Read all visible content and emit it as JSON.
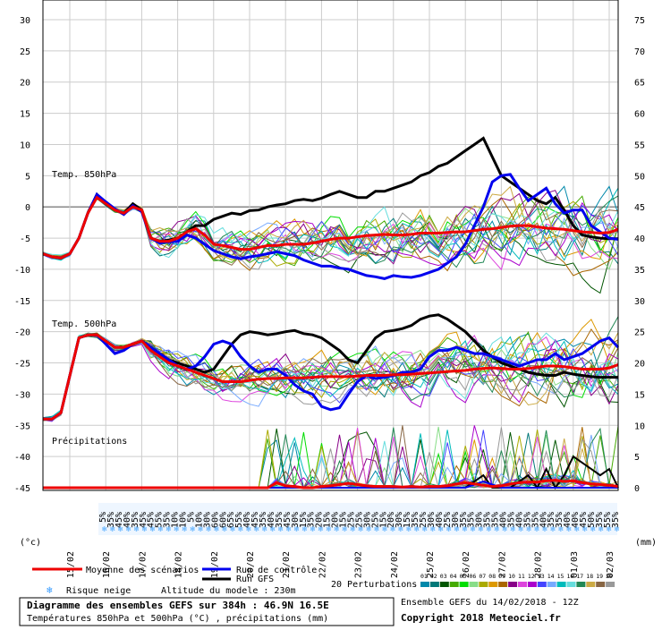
{
  "chart_data": {
    "type": "line",
    "title": "Diagramme des ensembles GEFS sur 384h : 46.9N 16.5E",
    "subtitle": "Températures 850hPa et 500hPa (°C) , précipitations (mm)",
    "left_axis": {
      "label": "(°c)",
      "ylim": [
        -45,
        30
      ],
      "ticks": [
        "30",
        "25",
        "20",
        "15",
        "10",
        "5",
        "0",
        "-5",
        "-10",
        "-15",
        "-20",
        "-25",
        "-30",
        "-35",
        "-40",
        "-45"
      ]
    },
    "right_axis": {
      "label": "(mm)",
      "ylim": [
        0,
        75
      ],
      "ticks": [
        "75",
        "70",
        "65",
        "60",
        "55",
        "50",
        "45",
        "40",
        "35",
        "30",
        "25",
        "20",
        "15",
        "10",
        "5",
        "0"
      ]
    },
    "x_dates": [
      "15/02",
      "16/02",
      "17/02",
      "18/02",
      "19/02",
      "20/02",
      "21/02",
      "22/02",
      "23/02",
      "24/02",
      "25/02",
      "26/02",
      "27/02",
      "28/02",
      "01/03",
      "02/03"
    ],
    "panels": {
      "t850": "Temp. 850hPa",
      "t500": "Temp. 500hPa",
      "precip": "Précipitations"
    },
    "x_steps": 65,
    "t850_mean": [
      -7.5,
      -8,
      -8.2,
      -7.5,
      -5,
      -1,
      1.5,
      0.5,
      -0.5,
      -1,
      0,
      -0.5,
      -5,
      -5.5,
      -5.5,
      -5,
      -4,
      -3.5,
      -4.5,
      -6,
      -6.2,
      -6.5,
      -6.8,
      -6.8,
      -6.5,
      -6.2,
      -6.2,
      -6,
      -6,
      -6,
      -5.8,
      -5.5,
      -5.2,
      -5,
      -5,
      -4.8,
      -4.6,
      -4.5,
      -4.4,
      -4.5,
      -4.5,
      -4.4,
      -4.2,
      -4.2,
      -4.2,
      -4.1,
      -4,
      -4,
      -3.8,
      -3.6,
      -3.5,
      -3.3,
      -3.1,
      -3,
      -3,
      -3.2,
      -3.4,
      -3.5,
      -3.6,
      -3.8,
      -4,
      -4.1,
      -4.2,
      -4.1,
      -3.6
    ],
    "t850_control": [
      -7.5,
      -8,
      -8.2,
      -7.5,
      -5,
      -1,
      2,
      0.8,
      -0.3,
      -1.2,
      0.2,
      -0.8,
      -5,
      -5.8,
      -5.6,
      -5.5,
      -4.5,
      -5,
      -6,
      -7,
      -7.5,
      -8,
      -8.3,
      -8,
      -7.8,
      -7.5,
      -7.2,
      -7.5,
      -7.8,
      -8.5,
      -9,
      -9.5,
      -9.5,
      -9.8,
      -10,
      -10.5,
      -11,
      -11.2,
      -11.5,
      -11,
      -11.2,
      -11.3,
      -11,
      -10.5,
      -10,
      -9,
      -8,
      -6,
      -3,
      0,
      4,
      5,
      5.2,
      3,
      1,
      2,
      3,
      0.5,
      -1,
      -0.5,
      -0.5,
      -3,
      -4,
      -5,
      -5.2
    ],
    "t850_run": [
      -7.5,
      -8,
      -8.2,
      -7.5,
      -5,
      -1,
      2,
      0.5,
      -0.5,
      -1,
      0.5,
      -0.5,
      -5,
      -5.5,
      -5.3,
      -5,
      -4,
      -3,
      -3,
      -2,
      -1.5,
      -1,
      -1.2,
      -0.6,
      -0.5,
      0,
      0.3,
      0.5,
      1,
      1.2,
      1,
      1.4,
      2,
      2.5,
      2,
      1.5,
      1.5,
      2.5,
      2.5,
      3,
      3.5,
      4,
      5,
      5.5,
      6.5,
      7,
      8,
      9,
      10,
      11,
      8,
      5,
      4,
      3,
      2,
      1,
      0.5,
      1.5,
      -0.5,
      -3,
      -4.5,
      -4.8,
      -5,
      -5.1,
      -5.1
    ],
    "t500_mean": [
      -34,
      -34,
      -33,
      -27,
      -21,
      -20.5,
      -20.5,
      -21.5,
      -22.5,
      -22.5,
      -22,
      -21.5,
      -23,
      -24,
      -25,
      -25.5,
      -26,
      -26.5,
      -27,
      -27.5,
      -28,
      -28,
      -28,
      -27.8,
      -27.6,
      -27.5,
      -27.5,
      -27.4,
      -27.4,
      -27.4,
      -27.3,
      -27.2,
      -27.2,
      -27.2,
      -27.2,
      -27.1,
      -27,
      -27,
      -27,
      -26.9,
      -26.9,
      -26.8,
      -26.7,
      -26.6,
      -26.5,
      -26.4,
      -26.3,
      -26.2,
      -26,
      -25.9,
      -25.8,
      -25.9,
      -26,
      -26,
      -25.9,
      -25.7,
      -25.5,
      -25.5,
      -25.6,
      -25.8,
      -26,
      -26,
      -26,
      -25.8,
      -25.3
    ],
    "t500_control": [
      -34,
      -34,
      -33,
      -27,
      -21,
      -20.5,
      -20.5,
      -22,
      -23.5,
      -23,
      -22,
      -21.5,
      -22.5,
      -23.5,
      -24.5,
      -25.5,
      -26,
      -25.5,
      -24,
      -22,
      -21.5,
      -22,
      -24,
      -25.5,
      -26.5,
      -26,
      -26,
      -27,
      -28.5,
      -29.5,
      -30,
      -32,
      -32.5,
      -32.2,
      -30,
      -28,
      -27,
      -27.5,
      -27.3,
      -27,
      -26.5,
      -26.5,
      -26,
      -24,
      -23,
      -23,
      -22.5,
      -23,
      -23.5,
      -23.5,
      -24,
      -24.5,
      -25,
      -25.5,
      -25,
      -24.5,
      -24.5,
      -23.5,
      -24.5,
      -24,
      -23.5,
      -22.5,
      -21.5,
      -21,
      -22.5
    ],
    "t500_run": [
      -34,
      -34,
      -33,
      -27,
      -21,
      -20.5,
      -20.5,
      -21.5,
      -22.5,
      -22.5,
      -22,
      -21.5,
      -22.5,
      -23.5,
      -24.5,
      -25,
      -25.5,
      -26,
      -26.5,
      -26,
      -24,
      -22,
      -20.5,
      -20,
      -20.2,
      -20.5,
      -20.3,
      -20,
      -19.8,
      -20.3,
      -20.5,
      -21,
      -22,
      -23,
      -24.5,
      -25,
      -23,
      -21,
      -20,
      -19.8,
      -19.5,
      -19,
      -18,
      -17.5,
      -17.3,
      -18,
      -19,
      -20,
      -21.5,
      -23,
      -24,
      -25,
      -25.5,
      -26,
      -26.5,
      -26.8,
      -27,
      -27,
      -26.5,
      -26.8,
      -27,
      -27.2,
      -27.3,
      -27.3,
      -27.3
    ],
    "precip_mean": [
      0,
      0,
      0,
      0,
      0,
      0,
      0,
      0,
      0,
      0,
      0,
      0,
      0,
      0,
      0,
      0,
      0,
      0,
      0,
      0,
      0,
      0,
      0,
      0,
      0,
      0,
      0.8,
      0.3,
      0.2,
      0,
      0,
      0.2,
      0.3,
      0.5,
      0.7,
      0.5,
      0.3,
      0.2,
      0.2,
      0.2,
      0.1,
      0.2,
      0.1,
      0.2,
      0.2,
      0.3,
      0.6,
      0.8,
      0.6,
      0.4,
      0.2,
      0.3,
      0.6,
      0.8,
      0.9,
      0.9,
      1.1,
      1.2,
      1,
      1.1,
      0.8,
      0.6,
      0.5,
      0.4,
      0.2
    ],
    "precip_control": [
      0,
      0,
      0,
      0,
      0,
      0,
      0,
      0,
      0,
      0,
      0,
      0,
      0,
      0,
      0,
      0,
      0,
      0,
      0,
      0,
      0,
      0,
      0,
      0,
      0,
      0,
      0,
      0,
      0,
      0,
      0,
      0,
      0,
      0,
      0,
      0,
      0,
      0,
      0,
      0,
      0,
      0,
      0,
      0,
      0,
      0,
      0,
      0,
      0.5,
      1,
      0.5,
      0,
      0,
      0,
      0,
      0,
      0,
      0,
      0,
      0,
      0,
      0,
      0,
      0,
      0
    ],
    "precip_run": [
      0,
      0,
      0,
      0,
      0,
      0,
      0,
      0,
      0,
      0,
      0,
      0,
      0,
      0,
      0,
      0,
      0,
      0,
      0,
      0,
      0,
      0,
      0,
      0,
      0,
      0,
      0,
      0,
      0,
      0,
      0,
      0,
      0,
      0,
      0,
      0,
      0,
      0,
      0,
      0,
      0,
      0,
      0,
      0,
      0,
      0,
      0,
      0,
      1,
      2,
      0,
      0,
      0,
      1,
      2,
      0,
      3,
      0,
      2,
      5,
      4,
      3,
      2,
      3,
      0
    ],
    "snow_risk": [
      "5%",
      "35%",
      "45%",
      "40%",
      "35%",
      "45%",
      "45%",
      "55%",
      "35%",
      "10%",
      "10%",
      "5%",
      "10%",
      "30%",
      "60%",
      "60%",
      "65%",
      "55%",
      "40%",
      "45%",
      "35%",
      "40%",
      "35%",
      "45%",
      "30%",
      "15%",
      "35%",
      "20%",
      "15%",
      "20%",
      "15%",
      "25%",
      "25%",
      "30%",
      "25%",
      "15%",
      "20%",
      "30%",
      "15%",
      "35%",
      "25%",
      "30%",
      "40%",
      "25%",
      "30%",
      "35%",
      "35%",
      "30%",
      "35%",
      "35%",
      "40%",
      "35%",
      "40%",
      "35%",
      "35%",
      "40%",
      "35%",
      "35%",
      "40%",
      "40%",
      "45%",
      "50%",
      "35%",
      "55%",
      "35%"
    ],
    "legend": {
      "mean": "Moyenne des scénarios",
      "control": "Run de contrôle",
      "run": "Run GFS",
      "perturbations": "20 Perturbations",
      "snow": "Risque neige",
      "altitude": "Altitude du modele : 230m"
    },
    "perturbation_ids": [
      "01",
      "02",
      "03",
      "04",
      "05",
      "06",
      "07",
      "08",
      "09",
      "10",
      "11",
      "12",
      "13",
      "14",
      "15",
      "16",
      "17",
      "18",
      "19",
      "20"
    ],
    "colors": {
      "mean": "#ee0000",
      "control": "#0000ee",
      "run": "#000000",
      "perturbations": [
        "#0088aa",
        "#007777",
        "#005500",
        "#44aa00",
        "#00dd00",
        "#88dd88",
        "#aaaa00",
        "#dd9900",
        "#aa6600",
        "#880088",
        "#dd44dd",
        "#aa00cc",
        "#4444ff",
        "#77aaff",
        "#00bbbb",
        "#66dddd",
        "#228855",
        "#ccaa44",
        "#886644",
        "#999999"
      ]
    },
    "footer": {
      "ensemble": "Ensemble GEFS du 14/02/2018 - 12Z",
      "copyright": "Copyright 2018 Meteociel.fr"
    }
  }
}
